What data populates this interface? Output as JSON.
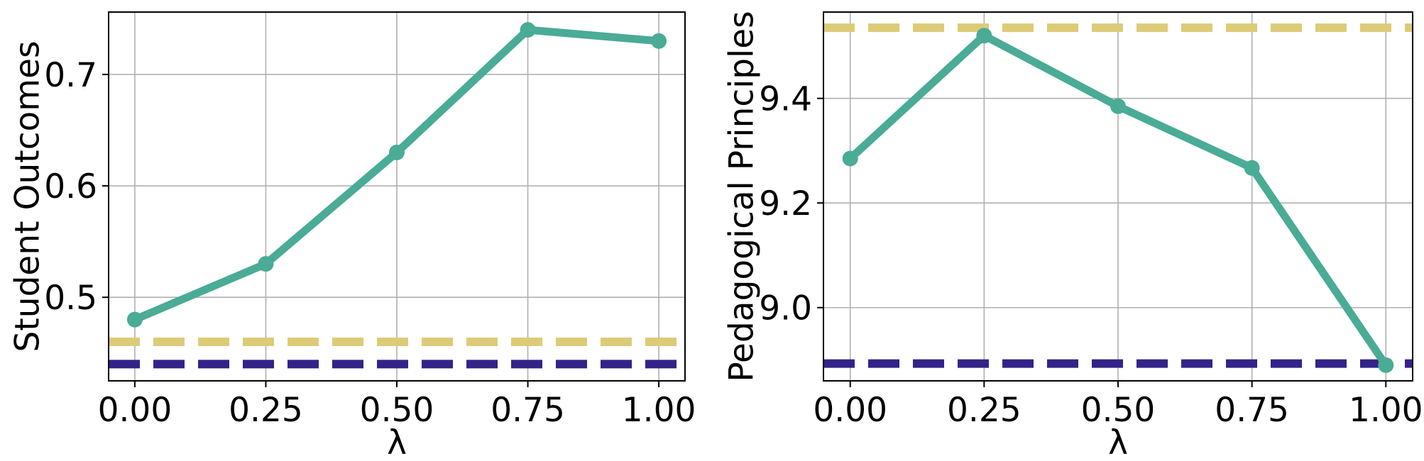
{
  "colors": {
    "series": "#4aab96",
    "ref_yellow": "#ddcb77",
    "ref_navy": "#332288",
    "grid": "#b0b0b0",
    "axis": "#000000"
  },
  "chart_data": [
    {
      "type": "line",
      "xlabel": "λ",
      "ylabel": "Student Outcomes",
      "x": [
        0.0,
        0.25,
        0.5,
        0.75,
        1.0
      ],
      "xticks": [
        0.0,
        0.25,
        0.5,
        0.75,
        1.0
      ],
      "xtick_labels": [
        "0.00",
        "0.25",
        "0.50",
        "0.75",
        "1.00"
      ],
      "yticks": [
        0.5,
        0.6,
        0.7
      ],
      "ytick_labels": [
        "0.5",
        "0.6",
        "0.7"
      ],
      "xlim": [
        -0.05,
        1.05
      ],
      "ylim": [
        0.425,
        0.756
      ],
      "grid": true,
      "series": [
        {
          "values": [
            0.48,
            0.53,
            0.63,
            0.74,
            0.73
          ],
          "color": "#4aab96",
          "style": "solid-markers"
        }
      ],
      "reference_lines": [
        {
          "y": 0.46,
          "color": "#ddcb77",
          "style": "dashed"
        },
        {
          "y": 0.44,
          "color": "#332288",
          "style": "dashed"
        }
      ]
    },
    {
      "type": "line",
      "xlabel": "λ",
      "ylabel": "Pedagogical Principles",
      "x": [
        0.0,
        0.25,
        0.5,
        0.75,
        1.0
      ],
      "xticks": [
        0.0,
        0.25,
        0.5,
        0.75,
        1.0
      ],
      "xtick_labels": [
        "0.00",
        "0.25",
        "0.50",
        "0.75",
        "1.00"
      ],
      "yticks": [
        9.0,
        9.2,
        9.4
      ],
      "ytick_labels": [
        "9.0",
        "9.2",
        "9.4"
      ],
      "xlim": [
        -0.05,
        1.05
      ],
      "ylim": [
        8.86,
        9.565
      ],
      "grid": true,
      "series": [
        {
          "values": [
            9.285,
            9.52,
            9.385,
            9.267,
            8.89
          ],
          "color": "#4aab96",
          "style": "solid-markers"
        }
      ],
      "reference_lines": [
        {
          "y": 9.535,
          "color": "#ddcb77",
          "style": "dashed"
        },
        {
          "y": 8.893,
          "color": "#332288",
          "style": "dashed"
        }
      ]
    }
  ]
}
